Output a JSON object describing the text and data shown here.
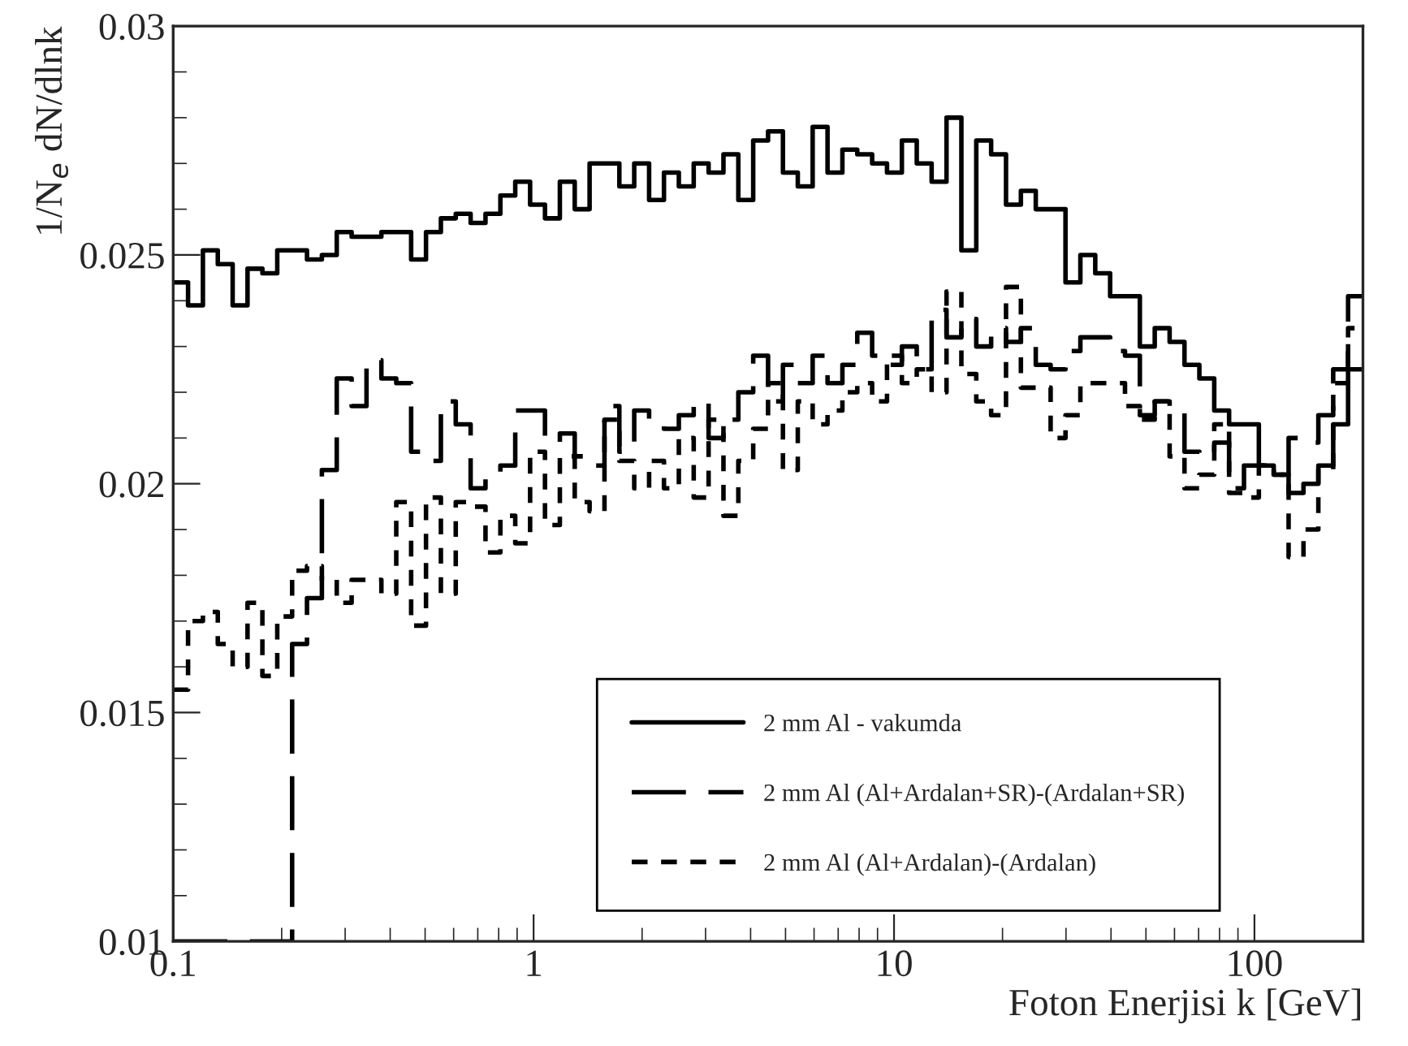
{
  "chart_data": {
    "type": "step",
    "xlabel": "Foton Enerjisi k [GeV]",
    "ylabel": "1/N$_{e}$ dN/dlnk",
    "log": "x",
    "xlim": [
      0.1,
      200
    ],
    "xticks": [
      {
        "value": 0.1,
        "label": "0.1"
      },
      1,
      10,
      100
    ],
    "ylim": [
      0.01,
      0.03
    ],
    "yticks": [
      0.01,
      0.015,
      0.02,
      0.025,
      0.03
    ],
    "grid": false,
    "legend": "bottom right",
    "x": [
      0.1,
      0.10997,
      0.12092,
      0.13297,
      0.14622,
      0.16079,
      0.17681,
      0.19443,
      0.2138,
      0.23511,
      0.25856,
      0.28434,
      0.31269,
      0.34387,
      0.37815,
      0.41585,
      0.45731,
      0.5029,
      0.55304,
      0.60814,
      0.66874,
      0.73541,
      0.80875,
      0.88936,
      0.97794,
      1.0754,
      1.1826,
      1.3005,
      1.4301,
      1.5727,
      1.7294,
      1.9018,
      2.0914,
      2.2999,
      2.5291,
      2.7813,
      3.0585,
      3.3633,
      3.6983,
      4.0671,
      4.4722,
      4.9181,
      5.4078,
      5.9467,
      6.5393,
      7.1909,
      7.9073,
      8.6953,
      9.5616,
      10.515,
      11.563,
      12.716,
      13.984,
      15.378,
      16.912,
      18.598,
      20.452,
      22.491,
      24.733,
      27.197,
      29.907,
      32.889,
      36.169,
      39.774,
      43.736,
      48.094,
      52.888,
      58.161,
      63.957,
      70.334,
      77.343,
      85.052,
      93.532,
      102.86,
      113.11,
      124.38,
      136.78,
      150.41,
      165.4,
      181.89,
      200
    ],
    "series": [
      {
        "name": "2 mm Al - vakumda",
        "color": "#000000",
        "line_style": "solid",
        "values": [
          0.0244,
          0.0239,
          0.0251,
          0.0248,
          0.0239,
          0.0247,
          0.0246,
          0.0251,
          0.0251,
          0.0249,
          0.025,
          0.0255,
          0.0254,
          0.0254,
          0.0255,
          0.0255,
          0.0249,
          0.0255,
          0.0258,
          0.0259,
          0.0257,
          0.0259,
          0.0263,
          0.0266,
          0.0261,
          0.0258,
          0.0266,
          0.026,
          0.027,
          0.027,
          0.0265,
          0.027,
          0.0262,
          0.0268,
          0.0265,
          0.027,
          0.0268,
          0.0272,
          0.0262,
          0.0275,
          0.0277,
          0.0268,
          0.0265,
          0.0278,
          0.0268,
          0.0273,
          0.0272,
          0.027,
          0.0268,
          0.0275,
          0.027,
          0.0266,
          0.028,
          0.0251,
          0.0275,
          0.0272,
          0.0261,
          0.0264,
          0.026,
          0.026,
          0.0244,
          0.025,
          0.0246,
          0.0241,
          0.0241,
          0.023,
          0.0234,
          0.0231,
          0.0226,
          0.0223,
          0.0216,
          0.0213,
          0.0213,
          0.0204,
          0.0202,
          0.0198,
          0.02,
          0.0204,
          0.0213,
          0.0225,
          0.0225
        ]
      },
      {
        "name": "2 mm Al (Al+Ardalan+SR)-(Ardalan+SR)",
        "color": "#000000",
        "line_style": "dashed",
        "values": [
          0.01,
          0.01,
          0.01,
          0.01,
          0.01,
          0.01,
          0.01,
          0.01,
          0.0165,
          0.0175,
          0.0203,
          0.0223,
          0.0217,
          0.0227,
          0.0223,
          0.0222,
          0.0207,
          0.0205,
          0.0218,
          0.0213,
          0.0199,
          0.0202,
          0.0204,
          0.0216,
          0.0216,
          0.0209,
          0.0211,
          0.0206,
          0.0204,
          0.0217,
          0.0207,
          0.0216,
          0.0213,
          0.0212,
          0.0215,
          0.0218,
          0.021,
          0.0214,
          0.022,
          0.0228,
          0.0218,
          0.0226,
          0.0222,
          0.0228,
          0.0222,
          0.0226,
          0.0233,
          0.0228,
          0.0226,
          0.023,
          0.0225,
          0.0238,
          0.0232,
          0.0236,
          0.023,
          0.0234,
          0.0231,
          0.0234,
          0.0226,
          0.0225,
          0.0229,
          0.0232,
          0.0232,
          0.0229,
          0.0228,
          0.0215,
          0.0218,
          0.0217,
          0.0207,
          0.0206,
          0.0209,
          0.0199,
          0.0204,
          0.0204,
          0.0202,
          0.021,
          0.0209,
          0.0215,
          0.0225,
          0.0241,
          0.0241
        ]
      },
      {
        "name": "2 mm Al (Al+Ardalan)-(Ardalan)",
        "color": "#000000",
        "line_style": "dotted",
        "values": [
          0.0155,
          0.017,
          0.0172,
          0.0165,
          0.016,
          0.0174,
          0.0158,
          0.0171,
          0.0181,
          0.0182,
          0.0179,
          0.0174,
          0.0179,
          0.0179,
          0.0176,
          0.0196,
          0.0169,
          0.0197,
          0.0176,
          0.0196,
          0.0195,
          0.0185,
          0.0193,
          0.0187,
          0.0207,
          0.0191,
          0.0206,
          0.0196,
          0.0194,
          0.0214,
          0.0205,
          0.0199,
          0.0205,
          0.0199,
          0.021,
          0.0197,
          0.0214,
          0.0193,
          0.0205,
          0.0212,
          0.0222,
          0.0203,
          0.0218,
          0.0213,
          0.0216,
          0.022,
          0.0222,
          0.0218,
          0.0228,
          0.0222,
          0.0225,
          0.022,
          0.0242,
          0.0224,
          0.0218,
          0.0215,
          0.0243,
          0.0221,
          0.0221,
          0.021,
          0.0215,
          0.0222,
          0.0222,
          0.0222,
          0.0217,
          0.0214,
          0.0218,
          0.0206,
          0.0199,
          0.0202,
          0.0213,
          0.0198,
          0.0197,
          0.0204,
          0.0202,
          0.0184,
          0.019,
          0.0203,
          0.0222,
          0.0234,
          0.0234
        ]
      }
    ]
  }
}
